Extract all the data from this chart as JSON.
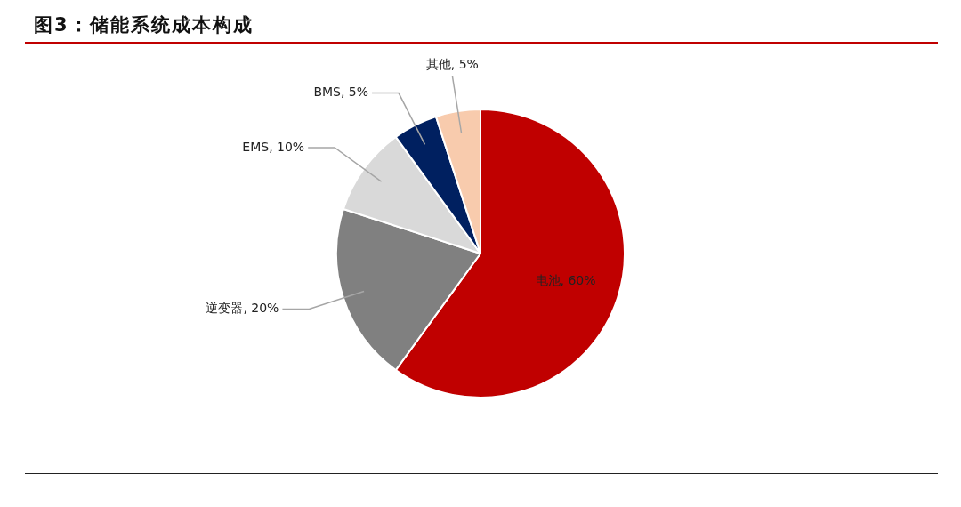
{
  "chart_data": {
    "type": "pie",
    "title": "图3：储能系统成本构成",
    "categories": [
      "电池",
      "逆变器",
      "EMS",
      "BMS",
      "其他"
    ],
    "values": [
      60,
      20,
      10,
      5,
      5
    ],
    "value_labels": [
      "60%",
      "20%",
      "10%",
      "5%",
      "5%"
    ],
    "colors": [
      "#c00000",
      "#808080",
      "#d9d9d9",
      "#002060",
      "#f8cbad"
    ],
    "legend": false
  }
}
